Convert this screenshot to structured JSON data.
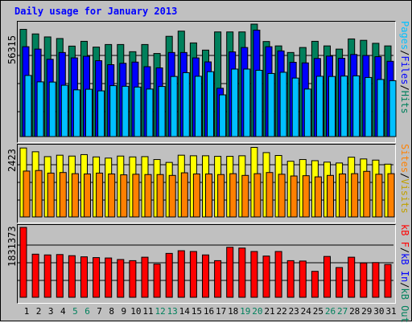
{
  "title": "Daily usage for January 2013",
  "colors": {
    "hits": "#00805c",
    "files": "#0000ff",
    "pages": "#00c0ff",
    "visits": "#ffff00",
    "sites": "#ff8000",
    "kb_in": "#00805c",
    "kb_out": "#0000ff",
    "kb_f": "#ff0000",
    "frame": "#c0c0c0",
    "weekend_label": "#00805c",
    "weekday_label": "#000000"
  },
  "chart_data": [
    {
      "type": "bar",
      "title": "Daily usage for January 2013",
      "panel": "requests",
      "y_max_label": "56315",
      "ylim": [
        0,
        56315
      ],
      "right_labels": [
        {
          "text": "Pages",
          "color": "#00c0ff"
        },
        {
          "text": "/",
          "color": "#000000"
        },
        {
          "text": "Files",
          "color": "#0000ff"
        },
        {
          "text": "/",
          "color": "#000000"
        },
        {
          "text": "Hits",
          "color": "#00805c"
        }
      ],
      "categories": [
        "1",
        "2",
        "3",
        "4",
        "5",
        "6",
        "7",
        "8",
        "9",
        "10",
        "11",
        "12",
        "13",
        "14",
        "15",
        "16",
        "17",
        "18",
        "19",
        "20",
        "21",
        "22",
        "23",
        "24",
        "25",
        "26",
        "27",
        "28",
        "29",
        "30",
        "31"
      ],
      "series": [
        {
          "name": "Hits",
          "values": [
            53680,
            51400,
            49900,
            49100,
            45300,
            47700,
            44800,
            46100,
            46100,
            42500,
            46100,
            41600,
            50200,
            52800,
            46900,
            43300,
            52400,
            52400,
            52400,
            56300,
            47600,
            45400,
            42100,
            44600,
            47700,
            45400,
            43800,
            48900,
            48200,
            46700,
            45400
          ]
        },
        {
          "name": "Files",
          "values": [
            45000,
            43800,
            38700,
            42100,
            39400,
            40200,
            38000,
            36000,
            36700,
            37300,
            35000,
            34400,
            42100,
            42100,
            39400,
            37400,
            24200,
            42400,
            44600,
            53300,
            45000,
            42900,
            37200,
            36900,
            39100,
            40300,
            39200,
            41100,
            40600,
            40000,
            37700
          ]
        },
        {
          "name": "Pages",
          "values": [
            30600,
            27400,
            27300,
            25700,
            23400,
            23700,
            22900,
            25500,
            25200,
            24800,
            23800,
            25100,
            30100,
            32000,
            30200,
            32500,
            20900,
            33800,
            33800,
            33200,
            31600,
            32200,
            29300,
            23800,
            30200,
            30100,
            30300,
            30400,
            29600,
            28600,
            28000
          ]
        }
      ]
    },
    {
      "type": "bar",
      "panel": "visitors",
      "y_max_label": "2423",
      "ylim": [
        0,
        2423
      ],
      "right_labels": [
        {
          "text": "Sites",
          "color": "#ff8000"
        },
        {
          "text": "/",
          "color": "#000000"
        },
        {
          "text": "Visits",
          "color": "#c0a000"
        }
      ],
      "categories": [
        "1",
        "2",
        "3",
        "4",
        "5",
        "6",
        "7",
        "8",
        "9",
        "10",
        "11",
        "12",
        "13",
        "14",
        "15",
        "16",
        "17",
        "18",
        "19",
        "20",
        "21",
        "22",
        "23",
        "24",
        "25",
        "26",
        "27",
        "28",
        "29",
        "30",
        "31"
      ],
      "series": [
        {
          "name": "Visits",
          "values": [
            2390,
            2260,
            2090,
            2140,
            2110,
            2160,
            2080,
            2040,
            2110,
            2080,
            2090,
            1990,
            1890,
            2140,
            2120,
            2120,
            2100,
            2100,
            2120,
            2410,
            2230,
            2130,
            1930,
            1990,
            1950,
            1900,
            1870,
            2070,
            2010,
            1970,
            1830
          ]
        },
        {
          "name": "Sites",
          "values": [
            1590,
            1610,
            1520,
            1540,
            1500,
            1490,
            1520,
            1490,
            1460,
            1480,
            1470,
            1470,
            1440,
            1530,
            1490,
            1490,
            1470,
            1500,
            1440,
            1500,
            1540,
            1480,
            1420,
            1430,
            1390,
            1440,
            1490,
            1500,
            1580,
            1480,
            1500
          ]
        }
      ]
    },
    {
      "type": "bar",
      "panel": "traffic",
      "y_max_label": "1831373",
      "ylim": [
        0,
        1831373
      ],
      "right_labels": [
        {
          "text": "kB F",
          "color": "#ff0000"
        },
        {
          "text": "/",
          "color": "#000000"
        },
        {
          "text": "kB In",
          "color": "#0000ff"
        },
        {
          "text": "/",
          "color": "#000000"
        },
        {
          "text": "kB Out",
          "color": "#00805c"
        }
      ],
      "categories": [
        "1",
        "2",
        "3",
        "4",
        "5",
        "6",
        "7",
        "8",
        "9",
        "10",
        "11",
        "12",
        "13",
        "14",
        "15",
        "16",
        "17",
        "18",
        "19",
        "20",
        "21",
        "22",
        "23",
        "24",
        "25",
        "26",
        "27",
        "28",
        "29",
        "30",
        "31"
      ],
      "series": [
        {
          "name": "kB F",
          "values": [
            1831373,
            1130000,
            1110000,
            1120000,
            1090000,
            1060000,
            1040000,
            1030000,
            990000,
            960000,
            1050000,
            870000,
            1150000,
            1220000,
            1200000,
            1110000,
            960000,
            1310000,
            1290000,
            1200000,
            1080000,
            1200000,
            960000,
            950000,
            680000,
            1070000,
            780000,
            1050000,
            900000,
            910000,
            860000
          ]
        }
      ]
    }
  ],
  "x_labels": [
    {
      "day": "1",
      "weekend": false
    },
    {
      "day": "2",
      "weekend": false
    },
    {
      "day": "3",
      "weekend": false
    },
    {
      "day": "4",
      "weekend": false
    },
    {
      "day": "5",
      "weekend": true
    },
    {
      "day": "6",
      "weekend": true
    },
    {
      "day": "7",
      "weekend": false
    },
    {
      "day": "8",
      "weekend": false
    },
    {
      "day": "9",
      "weekend": false
    },
    {
      "day": "10",
      "weekend": false
    },
    {
      "day": "11",
      "weekend": false
    },
    {
      "day": "12",
      "weekend": true
    },
    {
      "day": "13",
      "weekend": true
    },
    {
      "day": "14",
      "weekend": false
    },
    {
      "day": "15",
      "weekend": false
    },
    {
      "day": "16",
      "weekend": false
    },
    {
      "day": "17",
      "weekend": false
    },
    {
      "day": "18",
      "weekend": false
    },
    {
      "day": "19",
      "weekend": true
    },
    {
      "day": "20",
      "weekend": true
    },
    {
      "day": "21",
      "weekend": false
    },
    {
      "day": "22",
      "weekend": false
    },
    {
      "day": "23",
      "weekend": false
    },
    {
      "day": "24",
      "weekend": false
    },
    {
      "day": "25",
      "weekend": false
    },
    {
      "day": "26",
      "weekend": true
    },
    {
      "day": "27",
      "weekend": true
    },
    {
      "day": "28",
      "weekend": false
    },
    {
      "day": "29",
      "weekend": false
    },
    {
      "day": "30",
      "weekend": false
    },
    {
      "day": "31",
      "weekend": false
    }
  ]
}
